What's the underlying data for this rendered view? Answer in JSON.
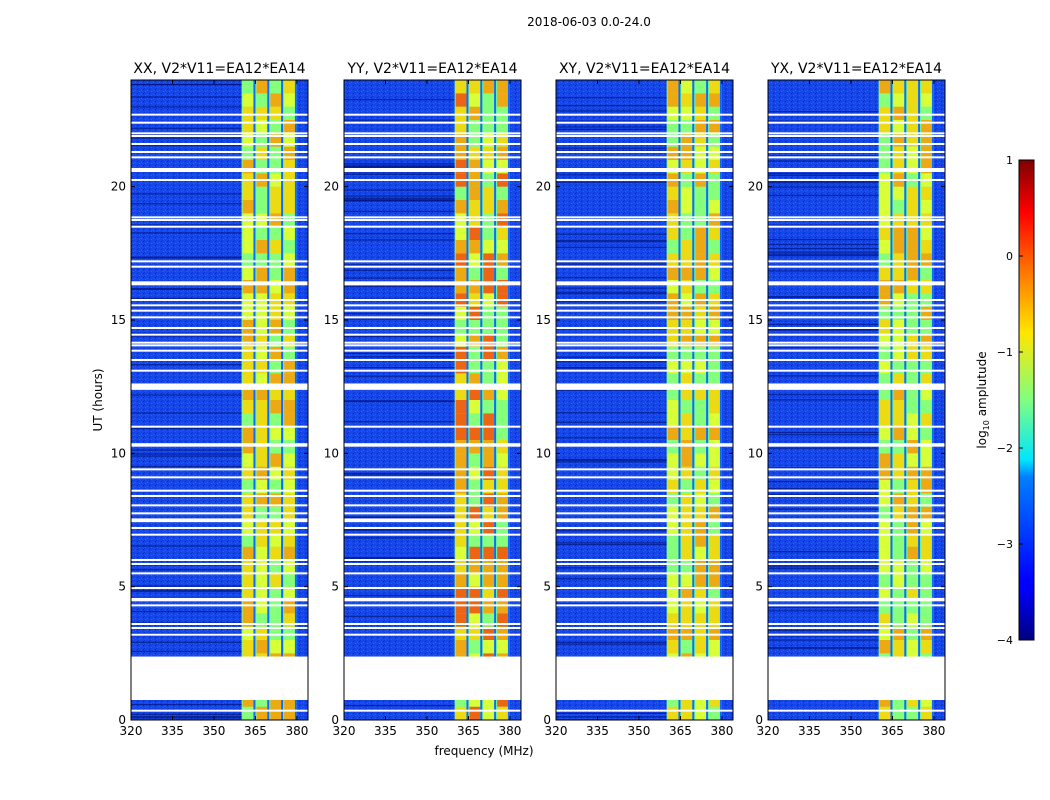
{
  "chart_data": {
    "type": "heatmap",
    "suptitle": "2018-06-03 0.0-24.0",
    "xlabel": "frequency (MHz)",
    "ylabel": "UT (hours)",
    "xlim": [
      320,
      384
    ],
    "ylim": [
      0,
      24
    ],
    "xticks": [
      320,
      335,
      350,
      365,
      380
    ],
    "yticks": [
      0,
      5,
      10,
      15,
      20
    ],
    "panels": [
      {
        "title": "XX, V2*V11=EA12*EA14"
      },
      {
        "title": "YY, V2*V11=EA12*EA14"
      },
      {
        "title": "XY, V2*V11=EA12*EA14"
      },
      {
        "title": "YX, V2*V11=EA12*EA14"
      }
    ],
    "colorbar": {
      "label_prefix": "log",
      "label_base": "10",
      "label_suffix": " amplutude",
      "ticks": [
        1,
        0,
        -1,
        -2,
        -3,
        -4
      ],
      "tick_labels": [
        "1",
        "0",
        "−1",
        "−2",
        "−3",
        "−4"
      ],
      "range": [
        -4,
        1
      ]
    },
    "signal_band_mhz": [
      360,
      380
    ],
    "missing_data_hours": [
      [
        0.75,
        2.38
      ],
      [
        12.38,
        12.62
      ],
      [
        10.25,
        10.38
      ],
      [
        16.3,
        16.45
      ],
      [
        4.45,
        4.58
      ],
      [
        7.42,
        7.56
      ],
      [
        20.55,
        20.7
      ]
    ],
    "flag_line_hours": [
      0.35,
      3.2,
      3.45,
      3.6,
      4.3,
      4.95,
      5.5,
      5.85,
      6.0,
      6.95,
      7.2,
      7.75,
      8.05,
      8.4,
      8.6,
      9.1,
      9.4,
      11.0,
      13.1,
      13.5,
      13.85,
      14.05,
      14.15,
      14.45,
      14.7,
      15.1,
      15.35,
      15.55,
      15.75,
      17.0,
      17.2,
      18.5,
      18.75,
      18.85,
      20.25,
      21.1,
      21.3,
      21.6,
      21.9,
      22.0,
      22.4,
      22.7
    ]
  }
}
